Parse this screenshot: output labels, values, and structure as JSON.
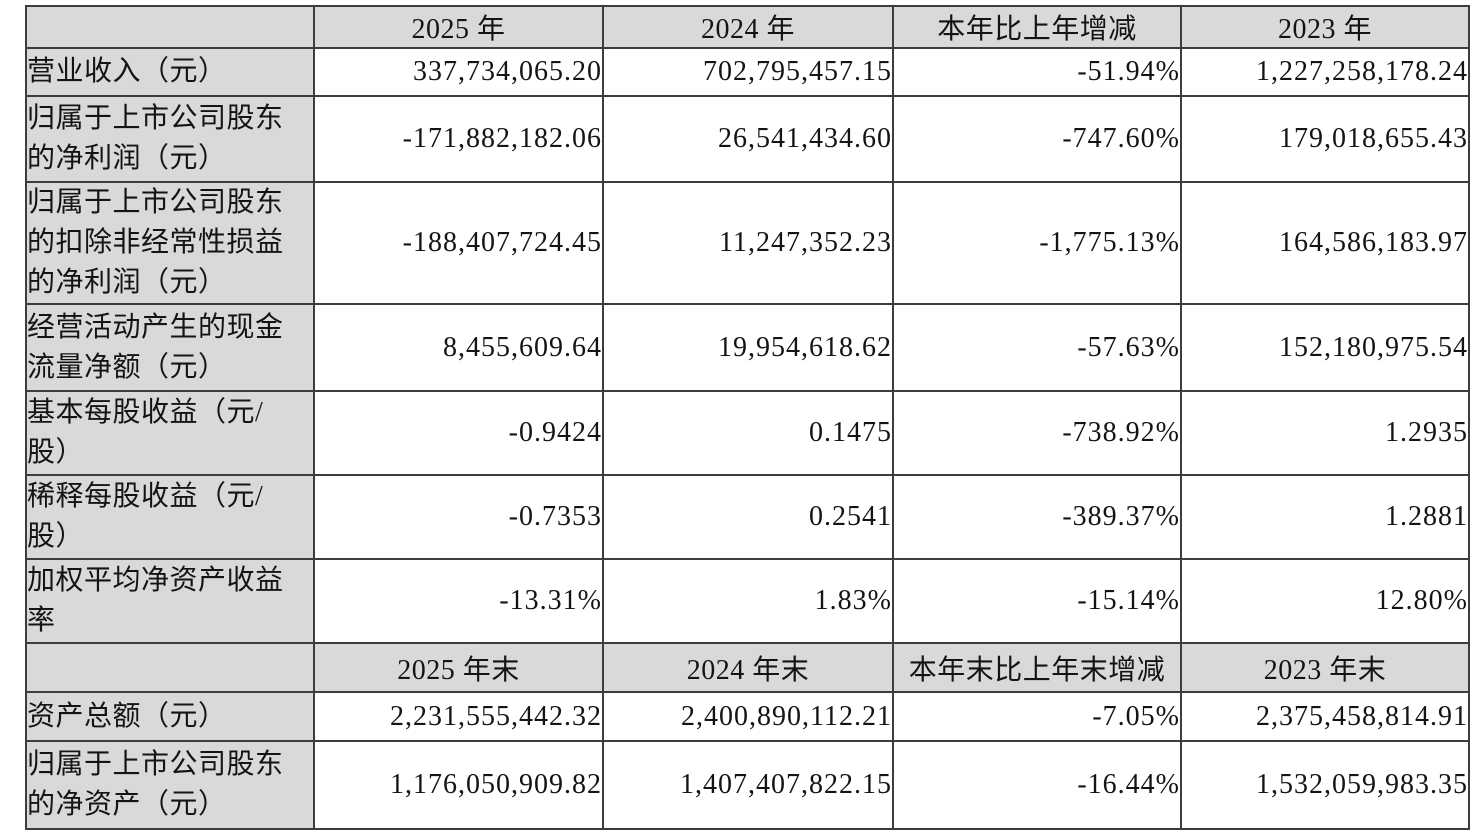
{
  "colors": {
    "header_bg": "#d9d9d9",
    "label_bg": "#d9d9d9",
    "cell_bg": "#ffffff",
    "border": "#3d3d3d",
    "text": "#141414"
  },
  "sections": [
    {
      "headers": [
        "",
        "2025 年",
        "2024 年",
        "本年比上年增减",
        "2023 年"
      ],
      "rows": [
        {
          "label": "营业收入（元）",
          "values": [
            "337,734,065.20",
            "702,795,457.15",
            "-51.94%",
            "1,227,258,178.24"
          ]
        },
        {
          "label": "归属于上市公司股东\n的净利润（元）",
          "values": [
            "-171,882,182.06",
            "26,541,434.60",
            "-747.60%",
            "179,018,655.43"
          ]
        },
        {
          "label": "归属于上市公司股东\n的扣除非经常性损益\n的净利润（元）",
          "values": [
            "-188,407,724.45",
            "11,247,352.23",
            "-1,775.13%",
            "164,586,183.97"
          ]
        },
        {
          "label": "经营活动产生的现金\n流量净额（元）",
          "values": [
            "8,455,609.64",
            "19,954,618.62",
            "-57.63%",
            "152,180,975.54"
          ]
        },
        {
          "label": "基本每股收益（元/\n股）",
          "values": [
            "-0.9424",
            "0.1475",
            "-738.92%",
            "1.2935"
          ]
        },
        {
          "label": "稀释每股收益（元/\n股）",
          "values": [
            "-0.7353",
            "0.2541",
            "-389.37%",
            "1.2881"
          ]
        },
        {
          "label": "加权平均净资产收益\n率",
          "values": [
            "-13.31%",
            "1.83%",
            "-15.14%",
            "12.80%"
          ]
        }
      ]
    },
    {
      "headers": [
        "",
        "2025 年末",
        "2024 年末",
        "本年末比上年末增减",
        "2023 年末"
      ],
      "rows": [
        {
          "label": "资产总额（元）",
          "values": [
            "2,231,555,442.32",
            "2,400,890,112.21",
            "-7.05%",
            "2,375,458,814.91"
          ]
        },
        {
          "label": "归属于上市公司股东\n的净资产（元）",
          "values": [
            "1,176,050,909.82",
            "1,407,407,822.15",
            "-16.44%",
            "1,532,059,983.35"
          ]
        }
      ]
    }
  ]
}
